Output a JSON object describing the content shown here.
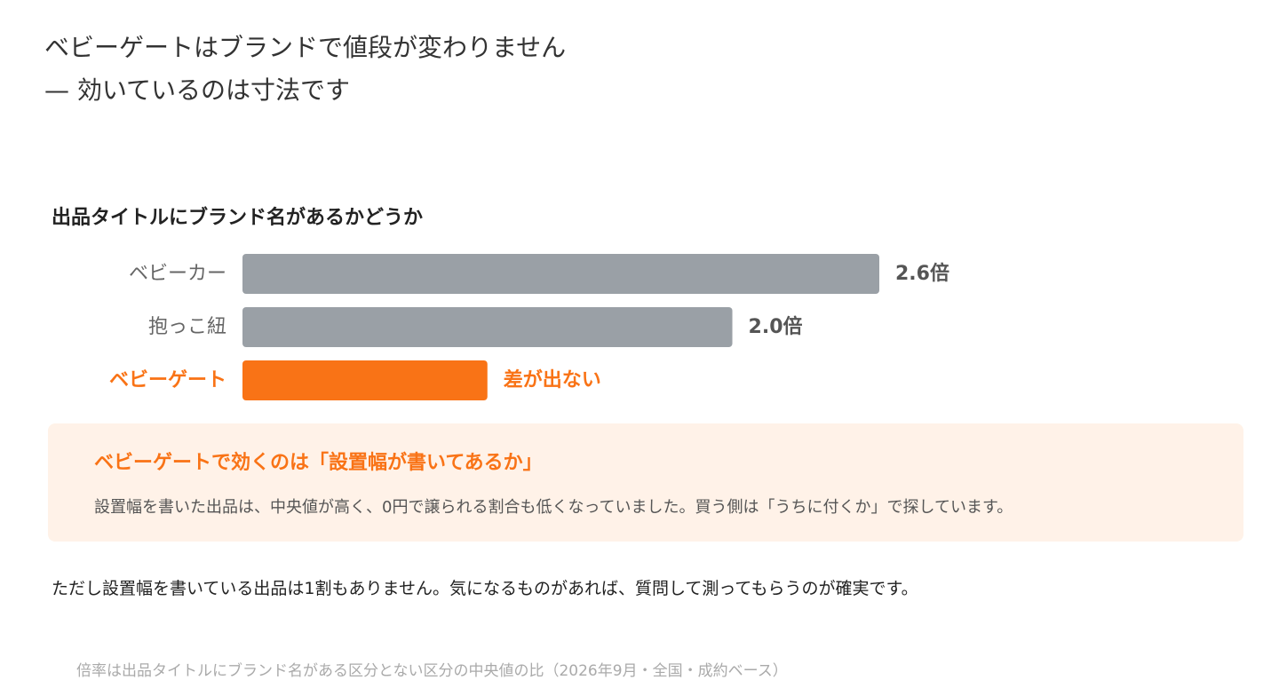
{
  "header": {
    "title_line1": "ベビーゲートはブランドで値段が変わりません",
    "title_line2": "— 効いているのは寸法です"
  },
  "chart_section": {
    "heading": "出品タイトルにブランド名があるかどうか"
  },
  "chart_data": {
    "type": "bar",
    "orientation": "horizontal",
    "title": "出品タイトルにブランド名があるかどうか",
    "categories": [
      "ベビーカー",
      "抱っこ紐",
      "ベビーゲート"
    ],
    "values": [
      2.6,
      2.0,
      1.0
    ],
    "value_labels": [
      "2.6倍",
      "2.0倍",
      "差が出ない"
    ],
    "highlight": [
      "ベビーゲート"
    ],
    "xlim": [
      0,
      2.6
    ],
    "grid": false,
    "colors": {
      "default": "#9aa0a6",
      "highlight": "#f97316",
      "label_default": "#555555"
    }
  },
  "callout": {
    "title": "ベビーゲートで効くのは「設置幅が書いてあるか」",
    "body": "設置幅を書いた出品は、中央値が高く、0円で譲られる割合も低くなっていました。買う側は「うちに付くか」で探しています。"
  },
  "note": "ただし設置幅を書いている出品は1割もありません。気になるものがあれば、質問して測ってもらうのが確実です。",
  "source": "倍率は出品タイトルにブランド名がある区分とない区分の中央値の比（2026年9月・全国・成約ベース）"
}
